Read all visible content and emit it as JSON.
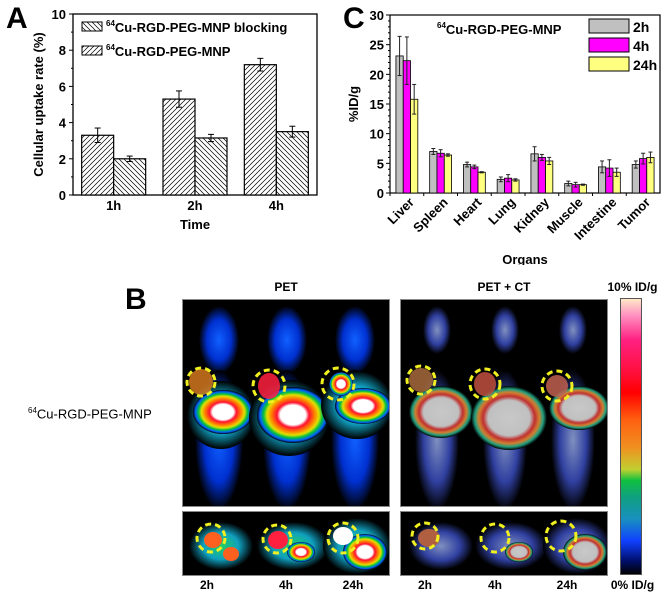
{
  "panels": {
    "a": {
      "letter": "A"
    },
    "b": {
      "letter": "B"
    },
    "c": {
      "letter": "C"
    }
  },
  "chart_data": [
    {
      "id": "A",
      "type": "bar",
      "title": "",
      "xlabel": "Time",
      "ylabel": "Cellular uptake rate (%)",
      "ylim": [
        0,
        10
      ],
      "yticks": [
        0,
        2,
        4,
        6,
        8,
        10
      ],
      "categories": [
        "1h",
        "2h",
        "4h"
      ],
      "legend_position": "top-left",
      "series": [
        {
          "name": "64Cu-RGD-PEG-MNP",
          "sup": "64",
          "label": "Cu-RGD-PEG-MNP",
          "hatch": "forward",
          "values": [
            3.3,
            5.3,
            7.2
          ],
          "errors": [
            0.4,
            0.45,
            0.35
          ]
        },
        {
          "name": "64Cu-RGD-PEG-MNP blocking",
          "sup": "64",
          "label": "Cu-RGD-PEG-MNP blocking",
          "hatch": "back",
          "values": [
            2.0,
            3.15,
            3.5
          ],
          "errors": [
            0.15,
            0.2,
            0.3
          ]
        }
      ],
      "legend_order": [
        1,
        0
      ]
    },
    {
      "id": "C",
      "type": "bar",
      "title": "",
      "annotation": {
        "sup": "64",
        "text": "Cu-RGD-PEG-MNP"
      },
      "xlabel": "Organs",
      "ylabel": "%ID/g",
      "ylim": [
        0,
        30
      ],
      "yticks": [
        0,
        5,
        10,
        15,
        20,
        25,
        30
      ],
      "categories": [
        "Liver",
        "Spleen",
        "Heart",
        "Lung",
        "Kidney",
        "Muscle",
        "Intestine",
        "Tumor"
      ],
      "legend_position": "top-right",
      "series": [
        {
          "name": "2h",
          "color": "#c0c0c0",
          "values": [
            23.1,
            7.0,
            4.8,
            2.3,
            6.6,
            1.6,
            4.4,
            4.8
          ],
          "errors": [
            3.3,
            0.5,
            0.4,
            0.4,
            1.2,
            0.4,
            1.0,
            0.6
          ]
        },
        {
          "name": "4h",
          "color": "#ff00ff",
          "values": [
            22.3,
            6.7,
            4.4,
            2.5,
            6.0,
            1.4,
            4.2,
            5.8
          ],
          "errors": [
            4.0,
            0.6,
            0.3,
            0.6,
            0.5,
            0.4,
            1.4,
            0.9
          ]
        },
        {
          "name": "24h",
          "color": "#ffff80",
          "values": [
            15.8,
            6.4,
            3.5,
            2.2,
            5.4,
            1.4,
            3.5,
            6.0
          ],
          "errors": [
            2.5,
            0.2,
            0.1,
            0.2,
            0.6,
            0.1,
            0.7,
            0.9
          ]
        }
      ]
    }
  ],
  "pet": {
    "probe_label": {
      "sup": "64",
      "text": "Cu-RGD-PEG-MNP"
    },
    "columns": [
      {
        "title": "PET",
        "timepoints": [
          "2h",
          "4h",
          "24h"
        ]
      },
      {
        "title": "PET + CT",
        "timepoints": [
          "2h",
          "4h",
          "24h"
        ]
      }
    ],
    "colorbar": {
      "max_label": "10% ID/g",
      "min_label": "0% ID/g"
    }
  }
}
